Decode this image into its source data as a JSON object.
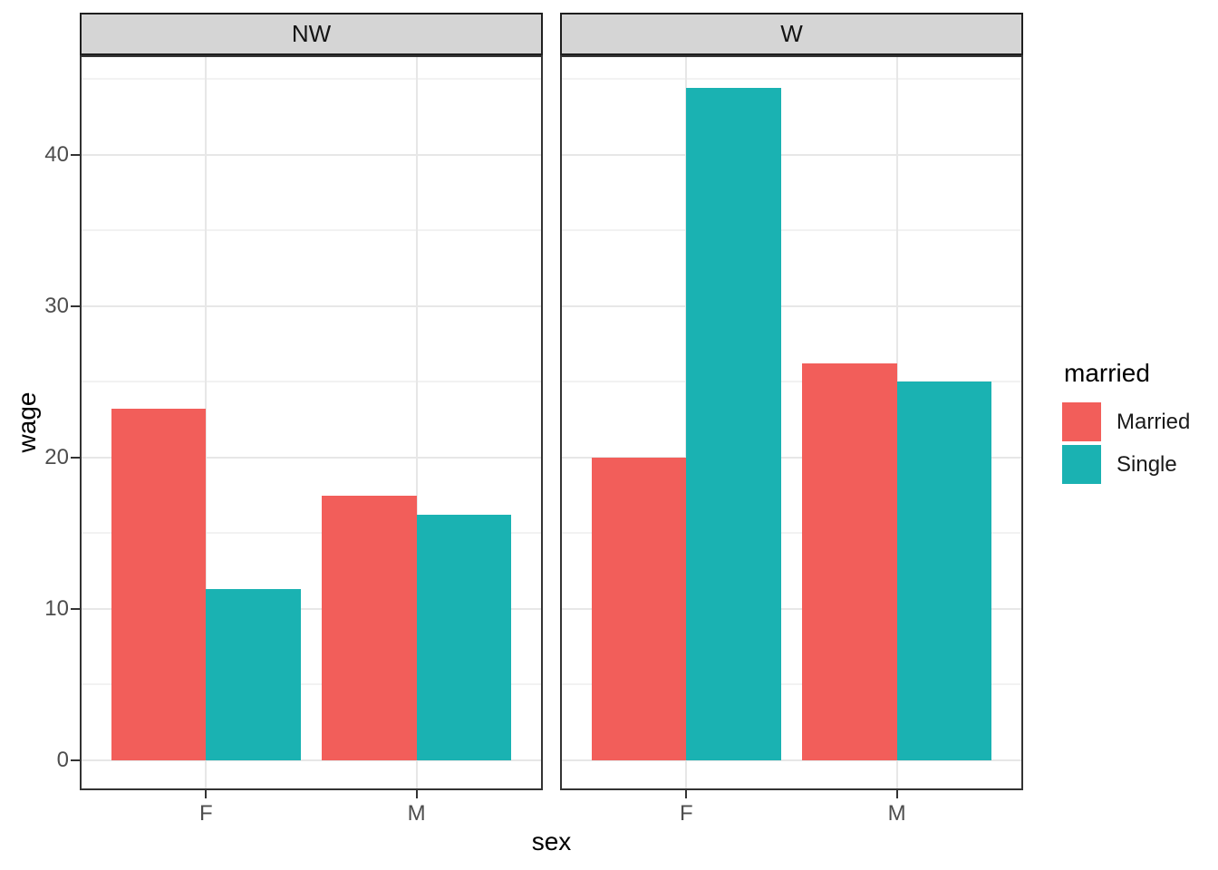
{
  "chart_data": {
    "type": "bar",
    "title": "",
    "xlabel": "sex",
    "ylabel": "wage",
    "categories": [
      "F",
      "M"
    ],
    "facet_variable_values": [
      "NW",
      "W"
    ],
    "facets": [
      {
        "label": "NW",
        "series": [
          {
            "name": "Married",
            "values": [
              23.2,
              17.5
            ]
          },
          {
            "name": "Single",
            "values": [
              11.3,
              16.2
            ]
          }
        ]
      },
      {
        "label": "W",
        "series": [
          {
            "name": "Married",
            "values": [
              20.0,
              26.2
            ]
          },
          {
            "name": "Single",
            "values": [
              44.4,
              25.0
            ]
          }
        ]
      }
    ],
    "legend": {
      "title": "married",
      "entries": [
        "Married",
        "Single"
      ],
      "position": "right"
    },
    "colors": {
      "Married": "#F25E5A",
      "Single": "#1AB2B2"
    },
    "y_ticks": [
      0,
      10,
      20,
      30,
      40
    ],
    "y_minor_ticks": [
      5,
      15,
      25,
      35,
      45
    ],
    "ylim": [
      -2.2,
      46.6
    ],
    "grid": true,
    "bar_layout": "dodge"
  }
}
